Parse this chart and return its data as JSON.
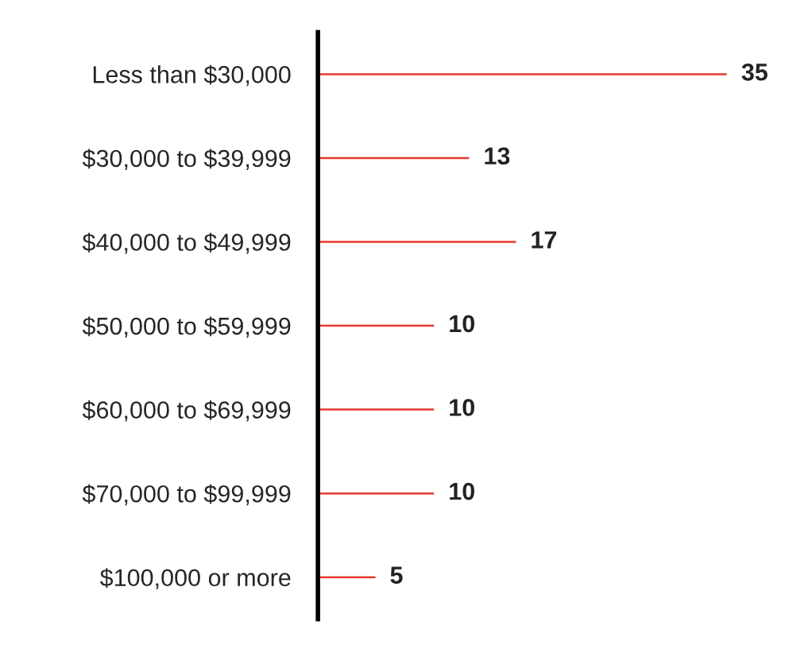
{
  "chart_data": {
    "type": "bar",
    "orientation": "horizontal",
    "categories": [
      "Less than $30,000",
      "$30,000 to $39,999",
      "$40,000 to $49,999",
      "$50,000 to $59,999",
      "$60,000 to $69,999",
      "$70,000 to $99,999",
      "$100,000 or more"
    ],
    "values": [
      35,
      13,
      17,
      10,
      10,
      10,
      5
    ],
    "color": "#e8392d",
    "data_labels": true,
    "grid": false,
    "legend": false
  }
}
